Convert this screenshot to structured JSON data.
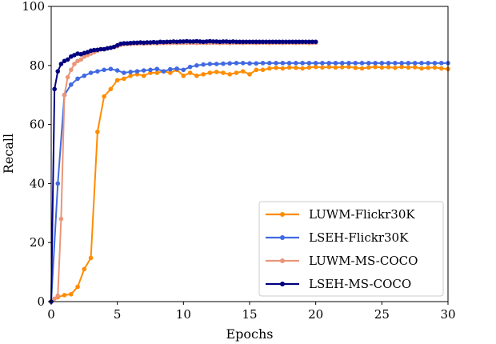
{
  "chart_data": {
    "type": "line",
    "title": "",
    "xlabel": "Epochs",
    "ylabel": "Recall",
    "xlim": [
      0,
      30
    ],
    "ylim": [
      0,
      100
    ],
    "xticks": [
      0,
      5,
      10,
      15,
      20,
      25,
      30
    ],
    "yticks": [
      0,
      20,
      40,
      60,
      80,
      100
    ],
    "xtick_labels": [
      "0",
      "5",
      "10",
      "15",
      "20",
      "25",
      "30"
    ],
    "ytick_labels": [
      "0",
      "20",
      "40",
      "60",
      "80",
      "100"
    ],
    "grid": false,
    "legend_position": "lower-right",
    "series": [
      {
        "name": "LUWM-Flickr30K",
        "color": "#ff8c00",
        "x": [
          0,
          0.5,
          1,
          1.5,
          2,
          2.5,
          3,
          3.5,
          4,
          4.5,
          5,
          5.5,
          6,
          6.5,
          7,
          7.5,
          8,
          8.5,
          9,
          9.5,
          10,
          10.5,
          11,
          11.5,
          12,
          12.5,
          13,
          13.5,
          14,
          14.5,
          15,
          15.5,
          16,
          16.5,
          17,
          17.5,
          18,
          18.5,
          19,
          19.5,
          20,
          20.5,
          21,
          21.5,
          22,
          22.5,
          23,
          23.5,
          24,
          24.5,
          25,
          25.5,
          26,
          26.5,
          27,
          27.5,
          28,
          28.5,
          29,
          29.5,
          30
        ],
        "values": [
          0,
          1.5,
          2.2,
          2.5,
          5,
          11,
          14.8,
          57.5,
          69.5,
          72,
          75,
          75.5,
          76.5,
          77,
          76.5,
          77.5,
          77.5,
          78,
          77.5,
          78.5,
          76.5,
          77.5,
          76.5,
          77,
          77.5,
          77.8,
          77.5,
          77,
          77.5,
          78,
          77,
          78.5,
          78.5,
          79,
          79.2,
          79,
          79.3,
          79.2,
          79,
          79.3,
          79.5,
          79.3,
          79.5,
          79.3,
          79.4,
          79.5,
          79.2,
          79,
          79.3,
          79.5,
          79.3,
          79.4,
          79.2,
          79.5,
          79.3,
          79.4,
          79,
          79.2,
          79.3,
          79,
          78.8
        ]
      },
      {
        "name": "LSEH-Flickr30K",
        "color": "#4169e1",
        "x": [
          0,
          0.5,
          1,
          1.5,
          2,
          2.5,
          3,
          3.5,
          4,
          4.5,
          5,
          5.5,
          6,
          6.5,
          7,
          7.5,
          8,
          8.5,
          9,
          9.5,
          10,
          10.5,
          11,
          11.5,
          12,
          12.5,
          13,
          13.5,
          14,
          14.5,
          15,
          15.5,
          16,
          16.5,
          17,
          17.5,
          18,
          18.5,
          19,
          19.5,
          20,
          20.5,
          21,
          21.5,
          22,
          22.5,
          23,
          23.5,
          24,
          24.5,
          25,
          25.5,
          26,
          26.5,
          27,
          27.5,
          28,
          28.5,
          29,
          29.5,
          30
        ],
        "values": [
          0,
          40,
          70,
          73.5,
          75.5,
          76.5,
          77.5,
          78,
          78.5,
          78.8,
          78.3,
          77.5,
          77.8,
          78,
          78.3,
          78.5,
          78.8,
          78,
          78.7,
          78.9,
          78.5,
          79.5,
          80,
          80.3,
          80.5,
          80.5,
          80.6,
          80.7,
          80.8,
          80.8,
          80.7,
          80.7,
          80.8,
          80.8,
          80.8,
          80.8,
          80.8,
          80.8,
          80.8,
          80.8,
          80.8,
          80.8,
          80.8,
          80.8,
          80.8,
          80.8,
          80.8,
          80.8,
          80.8,
          80.8,
          80.8,
          80.8,
          80.8,
          80.8,
          80.8,
          80.8,
          80.8,
          80.8,
          80.8,
          80.8,
          80.8
        ]
      },
      {
        "name": "LUWM-MS-COCO",
        "color": "#e9967a",
        "x": [
          0,
          0.25,
          0.5,
          0.75,
          1,
          1.25,
          1.5,
          1.75,
          2,
          2.25,
          2.5,
          2.75,
          3,
          3.25,
          3.5,
          3.75,
          4,
          4.25,
          4.5,
          4.75,
          5,
          5.25,
          5.5,
          5.75,
          6,
          6.25,
          6.5,
          6.75,
          7,
          7.25,
          7.5,
          7.75,
          8,
          8.25,
          8.5,
          8.75,
          9,
          9.25,
          9.5,
          9.75,
          10,
          10.25,
          10.5,
          10.75,
          11,
          11.25,
          11.5,
          11.75,
          12,
          12.25,
          12.5,
          12.75,
          13,
          13.25,
          13.5,
          13.75,
          14,
          14.25,
          14.5,
          14.75,
          15,
          15.25,
          15.5,
          15.75,
          16,
          16.25,
          16.5,
          16.75,
          17,
          17.25,
          17.5,
          17.75,
          18,
          18.25,
          18.5,
          18.75,
          19,
          19.25,
          19.5,
          19.75,
          20
        ],
        "values": [
          0,
          1,
          2,
          28,
          70,
          76,
          78.5,
          80.5,
          81.5,
          82,
          83,
          83.5,
          84,
          84.5,
          85,
          85.5,
          85.5,
          85.8,
          86,
          86.2,
          86.5,
          87,
          87.2,
          87.3,
          87.3,
          87.4,
          87.4,
          87.5,
          87.4,
          87.5,
          87.5,
          87.6,
          87.5,
          87.6,
          87.6,
          87.6,
          87.6,
          87.7,
          87.6,
          87.7,
          87.7,
          87.7,
          87.7,
          87.7,
          87.6,
          87.7,
          87.7,
          87.6,
          87.7,
          87.7,
          87.7,
          87.6,
          87.7,
          87.7,
          87.6,
          87.7,
          87.7,
          87.7,
          87.6,
          87.7,
          87.7,
          87.7,
          87.6,
          87.7,
          87.7,
          87.7,
          87.6,
          87.7,
          87.7,
          87.7,
          87.6,
          87.7,
          87.7,
          87.7,
          87.6,
          87.7,
          87.7,
          87.7,
          87.6,
          87.7,
          87.7
        ]
      },
      {
        "name": "LSEH-MS-COCO",
        "color": "#000080",
        "x": [
          0,
          0.25,
          0.5,
          0.75,
          1,
          1.25,
          1.5,
          1.75,
          2,
          2.25,
          2.5,
          2.75,
          3,
          3.25,
          3.5,
          3.75,
          4,
          4.25,
          4.5,
          4.75,
          5,
          5.25,
          5.5,
          5.75,
          6,
          6.25,
          6.5,
          6.75,
          7,
          7.25,
          7.5,
          7.75,
          8,
          8.25,
          8.5,
          8.75,
          9,
          9.25,
          9.5,
          9.75,
          10,
          10.25,
          10.5,
          10.75,
          11,
          11.25,
          11.5,
          11.75,
          12,
          12.25,
          12.5,
          12.75,
          13,
          13.25,
          13.5,
          13.75,
          14,
          14.25,
          14.5,
          14.75,
          15,
          15.25,
          15.5,
          15.75,
          16,
          16.25,
          16.5,
          16.75,
          17,
          17.25,
          17.5,
          17.75,
          18,
          18.25,
          18.5,
          18.75,
          19,
          19.25,
          19.5,
          19.75,
          20
        ],
        "values": [
          0,
          72,
          78,
          80.5,
          81.5,
          82,
          83,
          83.5,
          84,
          83.8,
          84.2,
          84.5,
          85,
          85.2,
          85.3,
          85.5,
          85.5,
          85.8,
          86,
          86.3,
          86.8,
          87.3,
          87.5,
          87.5,
          87.6,
          87.7,
          87.7,
          87.8,
          87.7,
          87.8,
          87.8,
          87.9,
          87.8,
          88,
          87.9,
          88,
          88,
          88.1,
          88,
          88.1,
          88.1,
          88.2,
          88.1,
          88.1,
          88.2,
          88.1,
          88,
          88.1,
          88.2,
          88.1,
          88.1,
          88,
          88.1,
          88.1,
          88,
          88.1,
          88,
          88,
          88,
          88,
          88,
          88,
          88,
          88,
          88,
          88,
          88,
          88,
          88,
          88,
          88,
          88,
          88,
          88,
          88,
          88,
          88,
          88,
          88,
          88,
          88
        ]
      }
    ]
  }
}
